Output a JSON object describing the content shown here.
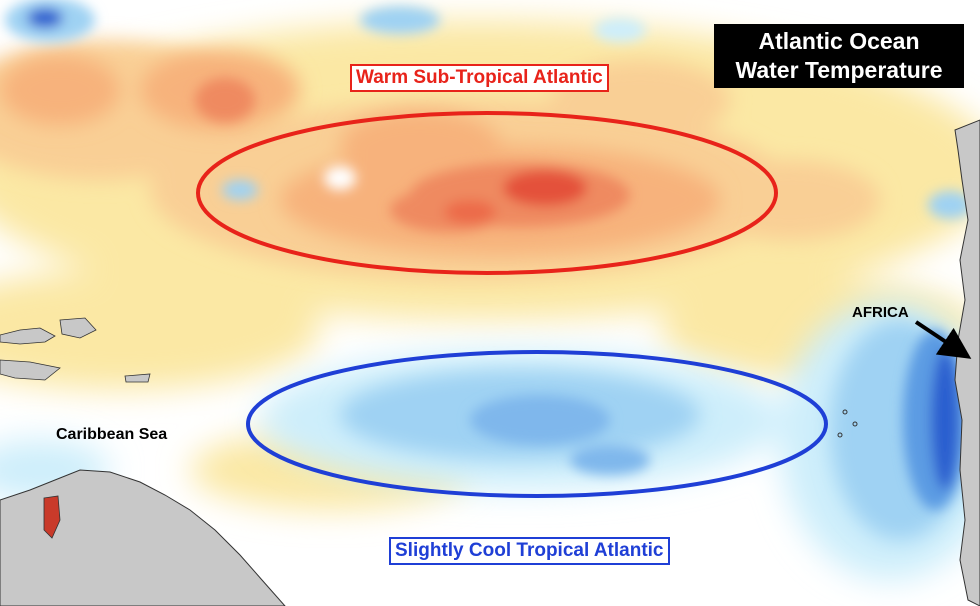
{
  "title": {
    "line1": "Atlantic Ocean",
    "line2": "Water Temperature"
  },
  "labels": {
    "warm_region": "Warm Sub-Tropical Atlantic",
    "cool_region": "Slightly Cool Tropical Atlantic",
    "caribbean": "Caribbean Sea",
    "africa": "AFRICA"
  },
  "colors": {
    "warm_outline": "#e8231a",
    "cool_outline": "#1f3fd6",
    "land": "#c8c8c8",
    "warm_light": "#fbe8a4",
    "warm_mid": "#f7b27c",
    "warm_strong": "#ef6a4a",
    "warm_peak": "#d9302a",
    "cool_light": "#cdeefb",
    "cool_mid": "#9fd2f3",
    "cool_strong": "#5b9be3",
    "cool_deep": "#2a5fcf"
  },
  "icons": {
    "africa_pointer": "arrow-icon"
  }
}
